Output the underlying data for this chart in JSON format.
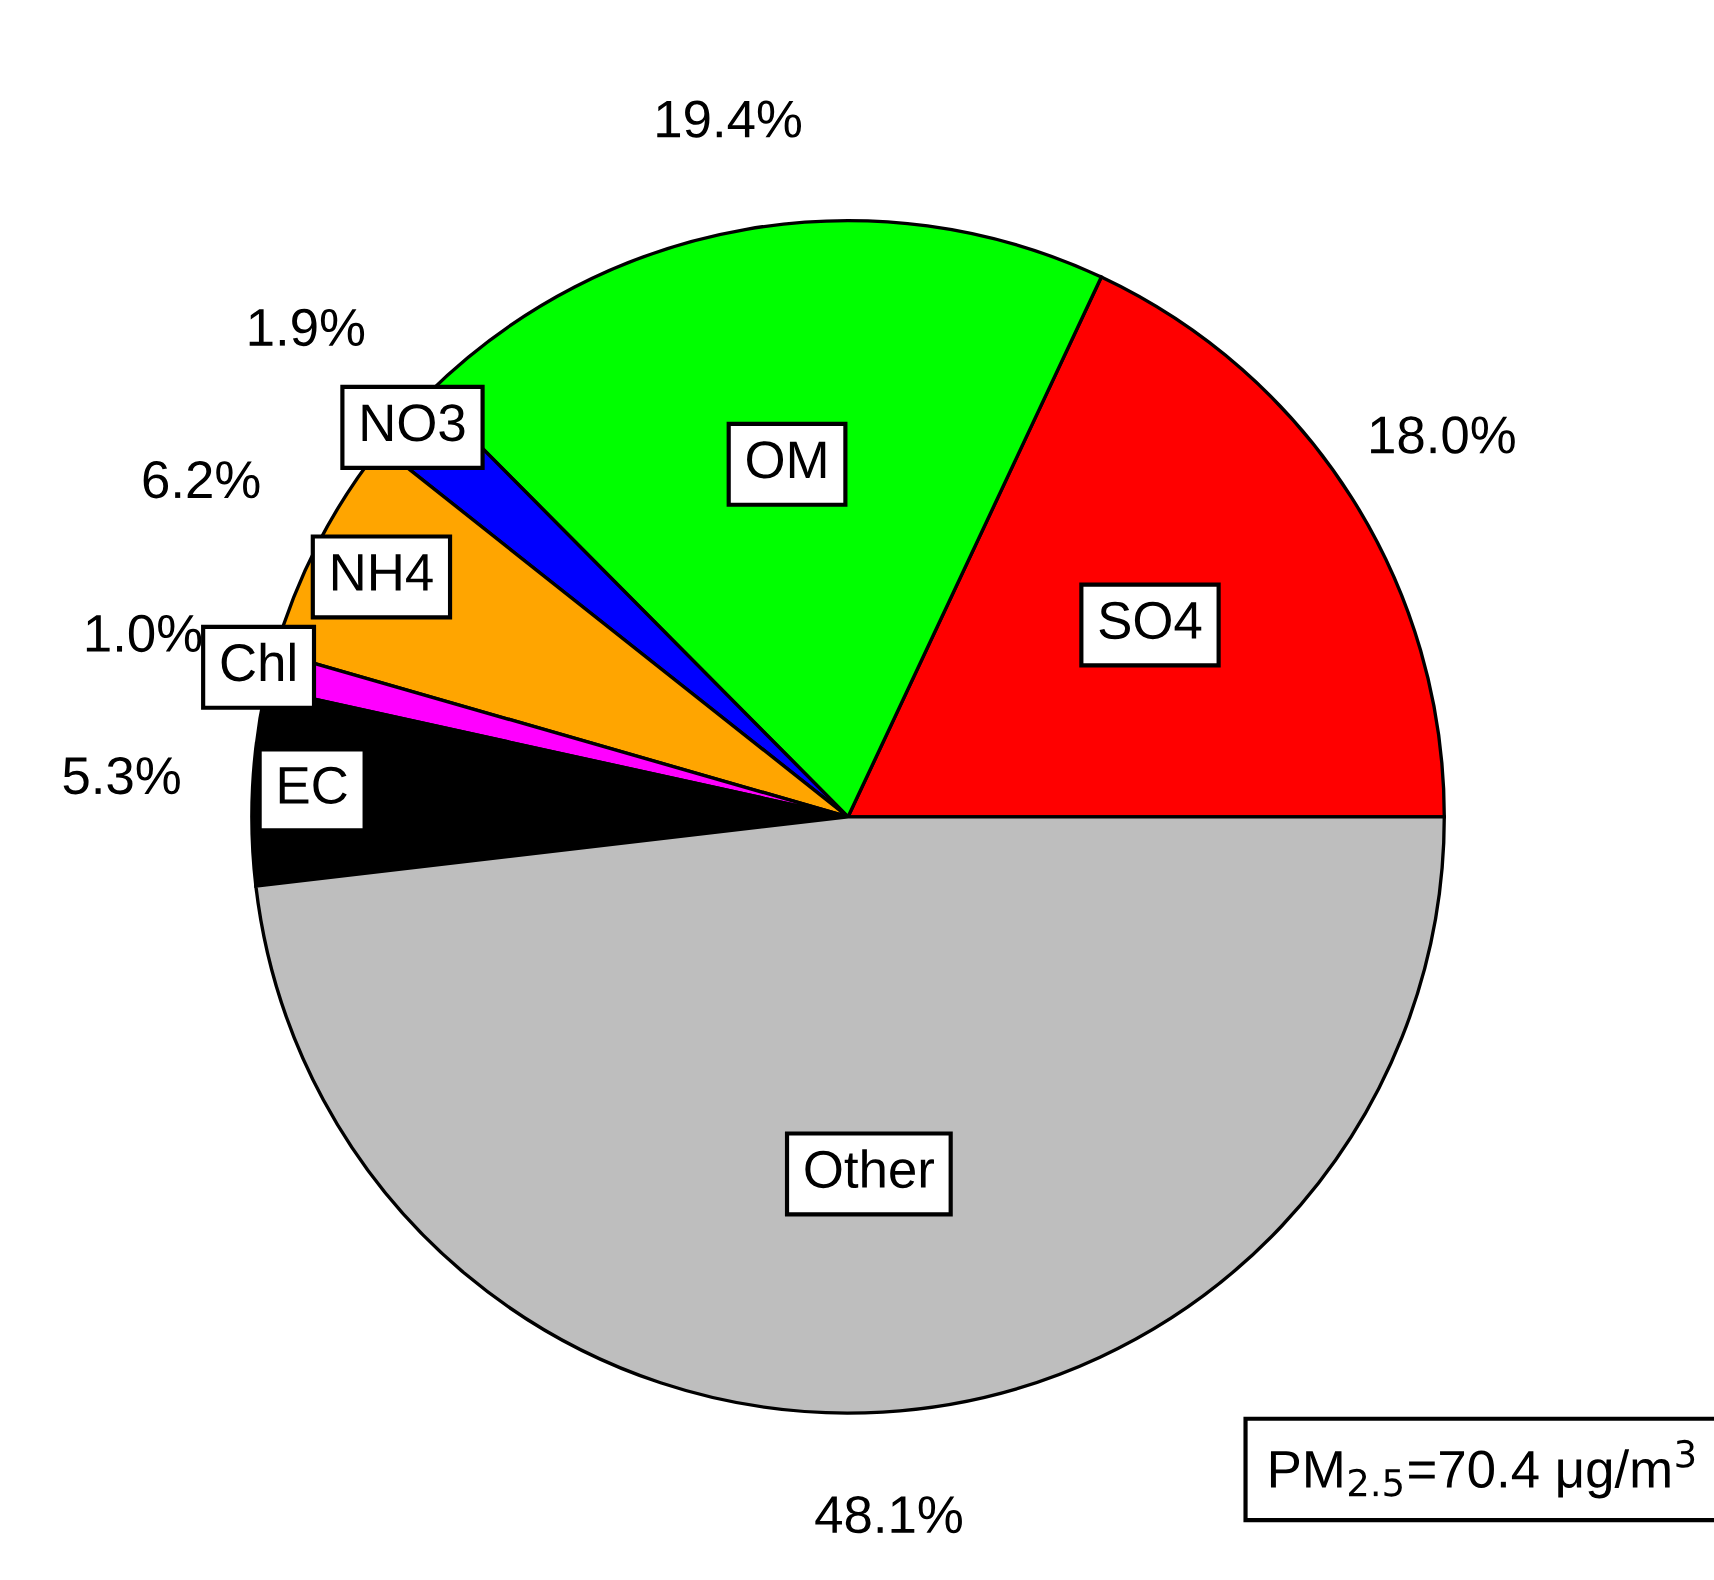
{
  "chart_data": {
    "type": "pie",
    "categories": [
      "SO4",
      "OM",
      "NO3",
      "NH4",
      "Chl",
      "EC",
      "Other"
    ],
    "values": [
      18.0,
      19.4,
      1.9,
      6.2,
      1.0,
      5.3,
      48.1
    ],
    "colors": [
      "#ff0000",
      "#00ff00",
      "#0000ff",
      "#ffa500",
      "#ff00ff",
      "#000000",
      "#bebebe"
    ],
    "value_labels": [
      "18.0%",
      "19.4%",
      "1.9%",
      "6.2%",
      "1.0%",
      "5.3%",
      "48.1%"
    ],
    "annotations": [
      "PM$_{2.5}$=70.4 μg/m$^{3}$"
    ]
  }
}
